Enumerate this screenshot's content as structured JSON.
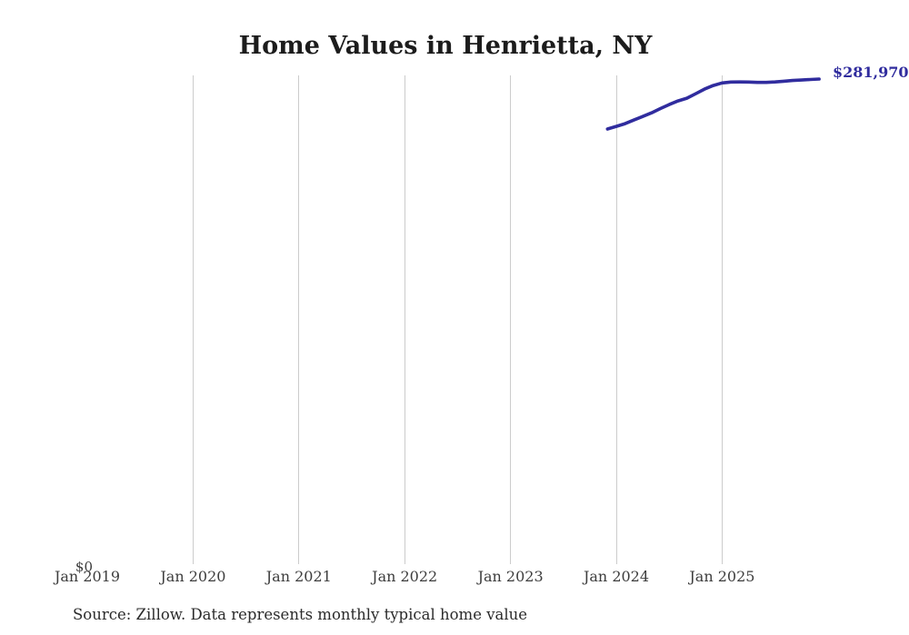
{
  "header": {
    "title": "Home Values in Henrietta, NY"
  },
  "chart": {
    "y_zero_label": "$0",
    "end_label": "$281,970",
    "line_color": "#302c9e",
    "grid_color": "#cccccc",
    "x_tick_labels": [
      "Jan 2019",
      "Jan 2020",
      "Jan 2021",
      "Jan 2022",
      "Jan 2023",
      "Jan 2024",
      "Jan 2025"
    ]
  },
  "footer": {
    "source_note": "Source: Zillow. Data represents monthly typical home value"
  },
  "chart_data": {
    "type": "line",
    "title": "Home Values in Henrietta, NY",
    "series_name": "Monthly typical home value",
    "unit": "USD",
    "xlabel": "",
    "ylabel": "",
    "x_tick_labels": [
      "Jan 2019",
      "Jan 2020",
      "Jan 2021",
      "Jan 2022",
      "Jan 2023",
      "Jan 2024",
      "Jan 2025"
    ],
    "x_range": [
      "2019-01",
      "2025-12"
    ],
    "ylim": [
      0,
      284000
    ],
    "grid": "vertical-only",
    "legend": "none",
    "end_point_label": "$281,970",
    "x": [
      "2023-12",
      "2024-01",
      "2024-02",
      "2024-03",
      "2024-04",
      "2024-05",
      "2024-06",
      "2024-07",
      "2024-08",
      "2024-09",
      "2024-10",
      "2024-11",
      "2024-12",
      "2025-01",
      "2025-02",
      "2025-03",
      "2025-04",
      "2025-05",
      "2025-06",
      "2025-07",
      "2025-08",
      "2025-09",
      "2025-10",
      "2025-11",
      "2025-12"
    ],
    "values": [
      252900,
      254400,
      256000,
      258100,
      260200,
      262300,
      264800,
      267100,
      269200,
      270800,
      273400,
      276100,
      278200,
      279700,
      280200,
      280300,
      280200,
      280000,
      280000,
      280300,
      280700,
      281100,
      281400,
      281700,
      281970
    ]
  }
}
